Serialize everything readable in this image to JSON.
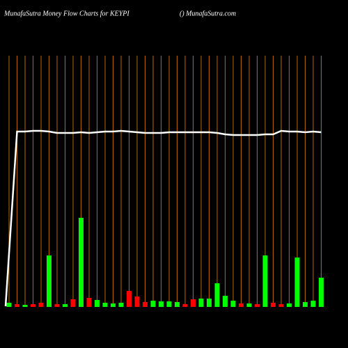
{
  "chart_data": {
    "type": "bar-line",
    "title": "MunafaSutra  Money Flow  Charts for KEYPI",
    "subtitle": "() MunafaSutra.com",
    "categories": [
      null,
      null,
      null,
      null,
      null,
      null,
      null,
      null,
      null,
      null,
      null,
      null,
      null,
      null,
      null,
      null,
      null,
      null,
      null,
      null,
      null,
      null,
      null,
      null,
      null,
      null,
      null,
      null,
      null,
      null,
      null,
      null,
      null,
      null,
      null,
      null,
      null,
      null,
      null,
      null
    ],
    "values": [
      6,
      4,
      3,
      4,
      6,
      74,
      4,
      4,
      11,
      128,
      13,
      10,
      6,
      5,
      6,
      23,
      15,
      7,
      9,
      8,
      8,
      7,
      4,
      11,
      12,
      12,
      34,
      16,
      9,
      5,
      5,
      4,
      74,
      6,
      4,
      5,
      71,
      7,
      9,
      42
    ],
    "colors": [
      "#00ff00",
      "#ff0000",
      "#00ff00",
      "#ff0000",
      "#ff0000",
      "#00ff00",
      "#ff0000",
      "#00ff00",
      "#ff0000",
      "#00ff00",
      "#ff0000",
      "#00ff00",
      "#00ff00",
      "#00ff00",
      "#00ff00",
      "#ff0000",
      "#ff0000",
      "#ff0000",
      "#00ff00",
      "#00ff00",
      "#00ff00",
      "#00ff00",
      "#ff0000",
      "#ff0000",
      "#00ff00",
      "#00ff00",
      "#00ff00",
      "#00ff00",
      "#00ff00",
      "#ff0000",
      "#00ff00",
      "#ff0000",
      "#00ff00",
      "#ff0000",
      "#ff0000",
      "#00ff00",
      "#00ff00",
      "#00ff00",
      "#00ff00",
      "#00ff00"
    ],
    "line_values": [
      1,
      252,
      252,
      253,
      253,
      252,
      250,
      250,
      250,
      251,
      250,
      251,
      252,
      252,
      253,
      252,
      251,
      250,
      250,
      250,
      251,
      251,
      251,
      251,
      251,
      251,
      250,
      248,
      247,
      247,
      247,
      247,
      248,
      248,
      253,
      252,
      252,
      251,
      252,
      251
    ],
    "line_color": "#ffffff",
    "grid_color": "#b86800",
    "ylim": [
      0,
      361
    ]
  }
}
